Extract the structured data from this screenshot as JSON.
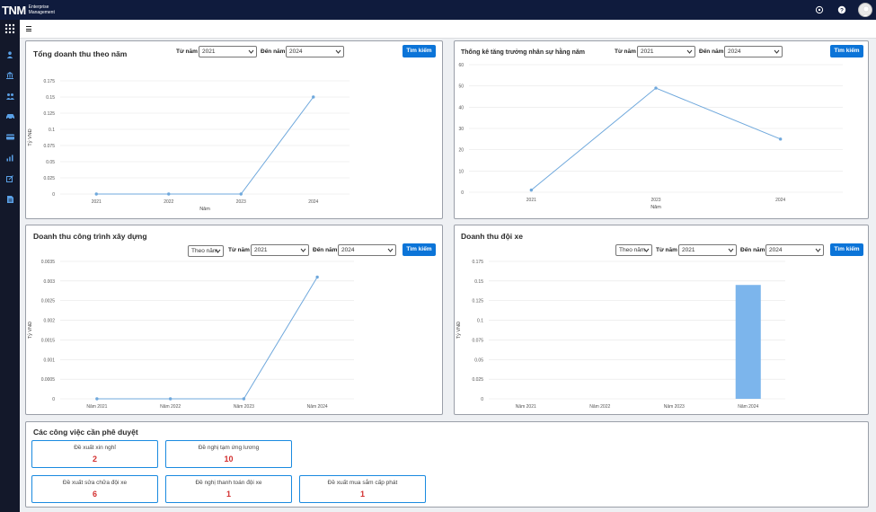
{
  "header": {
    "logo_text": "TNM",
    "logo_sub1": "Enterprise",
    "logo_sub2": "Management",
    "icons": [
      "settings-icon",
      "help-icon",
      "user-avatar"
    ]
  },
  "sidebar": {
    "icons": [
      "user-icon",
      "bank-icon",
      "users-icon",
      "car-icon",
      "card-icon",
      "chart-icon",
      "edit-icon",
      "document-icon"
    ]
  },
  "panel1": {
    "title": "Tổng doanh thu theo năm",
    "from_label": "Từ năm",
    "from_value": "2021",
    "to_label": "Đến năm",
    "to_value": "2024",
    "button": "Tìm kiếm"
  },
  "panel2": {
    "title": "Thống kê tăng trưởng nhân sự hằng năm",
    "from_label": "Từ năm",
    "from_value": "2021",
    "to_label": "Đến năm",
    "to_value": "2024",
    "button": "Tìm kiếm"
  },
  "panel3": {
    "title": "Doanh thu công trình xây dựng",
    "mode_value": "Theo năm",
    "from_label": "Từ năm",
    "from_value": "2021",
    "to_label": "Đến năm",
    "to_value": "2024",
    "button": "Tìm kiếm"
  },
  "panel4": {
    "title": "Doanh thu đội xe",
    "mode_value": "Theo năm",
    "from_label": "Từ năm",
    "from_value": "2021",
    "to_label": "Đến năm",
    "to_value": "2024",
    "button": "Tìm kiếm"
  },
  "approvals": {
    "title": "Các công việc cần phê duyệt",
    "cards": [
      {
        "label": "Đề xuất xin nghỉ",
        "count": "2"
      },
      {
        "label": "Đề nghị tạm ứng lương",
        "count": "10"
      },
      {
        "label": "Đề xuất sửa chữa đội xe",
        "count": "6"
      },
      {
        "label": "Đề nghị thanh toán đội xe",
        "count": "1"
      },
      {
        "label": "Đề xuất mua sắm cấp phát",
        "count": "1"
      }
    ]
  },
  "colors": {
    "accent": "#0b74d8",
    "line": "#6fa8dc",
    "bar": "#7cb5ec",
    "count": "#d32f2f",
    "nav": "#0f1b3d"
  },
  "chart_data": [
    {
      "type": "line",
      "x": [
        "2021",
        "2022",
        "2023",
        "2024"
      ],
      "values": [
        0,
        0,
        0,
        0.15
      ],
      "yticks": [
        "0",
        "0.025",
        "0.05",
        "0.075",
        "0.1",
        "0.125",
        "0.15",
        "0.175"
      ],
      "ylim": [
        0,
        0.175
      ],
      "xlabel": "Năm",
      "ylabel": "Tỷ VNĐ"
    },
    {
      "type": "line",
      "x": [
        "2021",
        "2023",
        "2024"
      ],
      "values": [
        1,
        49,
        25
      ],
      "yticks": [
        "0",
        "10",
        "20",
        "30",
        "40",
        "50",
        "60"
      ],
      "ylim": [
        0,
        60
      ],
      "xlabel": "Năm",
      "ylabel": ""
    },
    {
      "type": "line",
      "x": [
        "Năm 2021",
        "Năm 2022",
        "Năm 2023",
        "Năm 2024"
      ],
      "values": [
        0,
        0,
        0,
        0.0031
      ],
      "yticks": [
        "0",
        "0.0005",
        "0.001",
        "0.0015",
        "0.002",
        "0.0025",
        "0.003",
        "0.0035"
      ],
      "ylim": [
        0,
        0.0035
      ],
      "xlabel": "",
      "ylabel": "Tỷ VNĐ"
    },
    {
      "type": "bar",
      "x": [
        "Năm 2021",
        "Năm 2022",
        "Năm 2023",
        "Năm 2024"
      ],
      "values": [
        0,
        0,
        0,
        0.145
      ],
      "yticks": [
        "0",
        "0.025",
        "0.05",
        "0.075",
        "0.1",
        "0.125",
        "0.15",
        "0.175"
      ],
      "ylim": [
        0,
        0.175
      ],
      "xlabel": "",
      "ylabel": "Tỷ VNĐ"
    }
  ]
}
